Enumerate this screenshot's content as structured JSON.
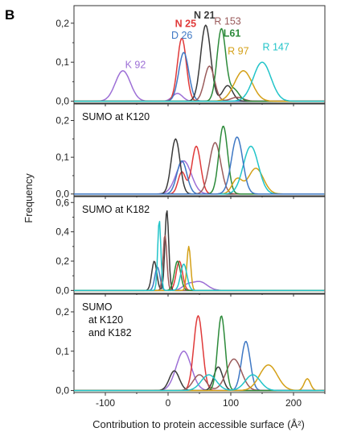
{
  "figure": {
    "panel_letter": "B",
    "xlabel": "Contribution to protein accessible surface (Å²)",
    "ylabel": "Frequency"
  },
  "colors": {
    "N 25": "#e03a3a",
    "D 26": "#3f78c4",
    "N 21": "#3a3a3a",
    "R 153": "#9a5b5b",
    "L61": "#2c8a3a",
    "R 97": "#d4a017",
    "R 147": "#22c4c9",
    "K 92": "#9d6fd6"
  },
  "chart_data": [
    {
      "type": "line",
      "title": "",
      "xlim": [
        -150,
        250
      ],
      "ylim": [
        -0.005,
        0.245
      ],
      "xticks": [
        -100,
        0,
        100,
        200
      ],
      "yticks": [
        {
          "v": 0.0,
          "label": "0,0"
        },
        {
          "v": 0.1,
          "label": "0,1"
        },
        {
          "v": 0.2,
          "label": "0,2"
        }
      ],
      "series": [
        {
          "name": "K 92",
          "label_x": -52,
          "label_y": 0.085,
          "peaks": [
            [
              -72,
              0.078,
              12
            ],
            [
              15,
              0.02,
              8
            ]
          ]
        },
        {
          "name": "N 25",
          "label_x": 28,
          "label_y": 0.19,
          "peaks": [
            [
              22,
              0.162,
              7
            ]
          ]
        },
        {
          "name": "D 26",
          "label_x": 22,
          "label_y": 0.16,
          "peaks": [
            [
              25,
              0.125,
              8
            ]
          ]
        },
        {
          "name": "N 21",
          "label_x": 58,
          "label_y": 0.212,
          "peaks": [
            [
              60,
              0.195,
              8
            ],
            [
              95,
              0.04,
              8
            ]
          ]
        },
        {
          "name": "R 153",
          "label_x": 95,
          "label_y": 0.196,
          "peaks": [
            [
              66,
              0.09,
              8
            ],
            [
              110,
              0.01,
              10
            ]
          ]
        },
        {
          "name": "L61",
          "label_x": 102,
          "label_y": 0.165,
          "peaks": [
            [
              85,
              0.185,
              7
            ],
            [
              105,
              0.03,
              8
            ]
          ]
        },
        {
          "name": "R 97",
          "label_x": 112,
          "label_y": 0.12,
          "peaks": [
            [
              120,
              0.078,
              14
            ]
          ]
        },
        {
          "name": "R 147",
          "label_x": 172,
          "label_y": 0.13,
          "peaks": [
            [
              150,
              0.1,
              14
            ]
          ]
        }
      ]
    },
    {
      "type": "line",
      "title": "SUMO at K120",
      "xlim": [
        -150,
        250
      ],
      "ylim": [
        -0.005,
        0.245
      ],
      "xticks": [
        -100,
        0,
        100,
        200
      ],
      "yticks": [
        {
          "v": 0.0,
          "label": "0,0"
        },
        {
          "v": 0.1,
          "label": "0,1"
        },
        {
          "v": 0.2,
          "label": "0,2"
        }
      ],
      "series": [
        {
          "name": "K 92",
          "peaks": [
            [
              25,
              0.09,
              12
            ]
          ]
        },
        {
          "name": "N 25",
          "peaks": [
            [
              45,
              0.13,
              7
            ],
            [
              22,
              0.06,
              6
            ]
          ]
        },
        {
          "name": "D 26",
          "peaks": [
            [
              22,
              0.09,
              8
            ]
          ]
        },
        {
          "name": "N 21",
          "peaks": [
            [
              12,
              0.15,
              7
            ]
          ]
        },
        {
          "name": "R 153",
          "peaks": [
            [
              75,
              0.14,
              9
            ]
          ]
        },
        {
          "name": "L61",
          "peaks": [
            [
              88,
              0.185,
              7
            ]
          ]
        },
        {
          "name": "R 97",
          "peaks": [
            [
              140,
              0.07,
              12
            ],
            [
              110,
              0.04,
              8
            ]
          ]
        },
        {
          "name": "R 147",
          "peaks": [
            [
              132,
              0.13,
              12
            ]
          ]
        },
        {
          "name": "D 26",
          "peaks": [
            [
              110,
              0.155,
              9
            ]
          ]
        }
      ]
    },
    {
      "type": "line",
      "title": "SUMO at K182",
      "xlim": [
        -150,
        250
      ],
      "ylim": [
        -0.02,
        0.64
      ],
      "xticks": [
        -100,
        0,
        100,
        200
      ],
      "yticks": [
        {
          "v": 0.0,
          "label": "0,0"
        },
        {
          "v": 0.2,
          "label": "0,2"
        },
        {
          "v": 0.4,
          "label": "0,4"
        },
        {
          "v": 0.6,
          "label": "0,6"
        }
      ],
      "series": [
        {
          "name": "K 92",
          "peaks": [
            [
              50,
              0.06,
              12
            ],
            [
              30,
              0.03,
              8
            ]
          ]
        },
        {
          "name": "N 25",
          "peaks": [
            [
              18,
              0.2,
              5
            ]
          ]
        },
        {
          "name": "D 26",
          "peaks": [
            [
              -17,
              0.16,
              4
            ]
          ]
        },
        {
          "name": "N 21",
          "peaks": [
            [
              -2,
              0.55,
              3
            ],
            [
              -22,
              0.2,
              4
            ]
          ]
        },
        {
          "name": "R 153",
          "peaks": [
            [
              -5,
              0.38,
              3
            ]
          ]
        },
        {
          "name": "L61",
          "peaks": [
            [
              15,
              0.2,
              5
            ]
          ]
        },
        {
          "name": "R 97",
          "peaks": [
            [
              33,
              0.3,
              3
            ]
          ]
        },
        {
          "name": "R 147",
          "peaks": [
            [
              -14,
              0.48,
              2.5
            ],
            [
              25,
              0.18,
              5
            ]
          ]
        }
      ]
    },
    {
      "type": "line",
      "title": "SUMO",
      "title_lines": [
        "SUMO",
        "at K120",
        "and K182"
      ],
      "xlim": [
        -150,
        250
      ],
      "ylim": [
        -0.005,
        0.245
      ],
      "xticks": [
        -100,
        0,
        100,
        200
      ],
      "yticks": [
        {
          "v": 0.0,
          "label": "0,0"
        },
        {
          "v": 0.1,
          "label": "0,1"
        },
        {
          "v": 0.2,
          "label": "0,2"
        }
      ],
      "series": [
        {
          "name": "K 92",
          "peaks": [
            [
              25,
              0.1,
              12
            ]
          ]
        },
        {
          "name": "N 25",
          "peaks": [
            [
              48,
              0.19,
              7
            ]
          ]
        },
        {
          "name": "D 26",
          "peaks": [
            [
              124,
              0.125,
              7
            ]
          ]
        },
        {
          "name": "N 21",
          "peaks": [
            [
              10,
              0.05,
              8
            ],
            [
              80,
              0.06,
              7
            ]
          ]
        },
        {
          "name": "R 153",
          "peaks": [
            [
              105,
              0.08,
              12
            ],
            [
              50,
              0.04,
              10
            ]
          ]
        },
        {
          "name": "L61",
          "peaks": [
            [
              85,
              0.19,
              6
            ]
          ]
        },
        {
          "name": "R 97",
          "peaks": [
            [
              160,
              0.065,
              14
            ],
            [
              222,
              0.03,
              5
            ]
          ]
        },
        {
          "name": "R 147",
          "peaks": [
            [
              135,
              0.04,
              12
            ],
            [
              65,
              0.04,
              12
            ]
          ]
        }
      ]
    }
  ]
}
